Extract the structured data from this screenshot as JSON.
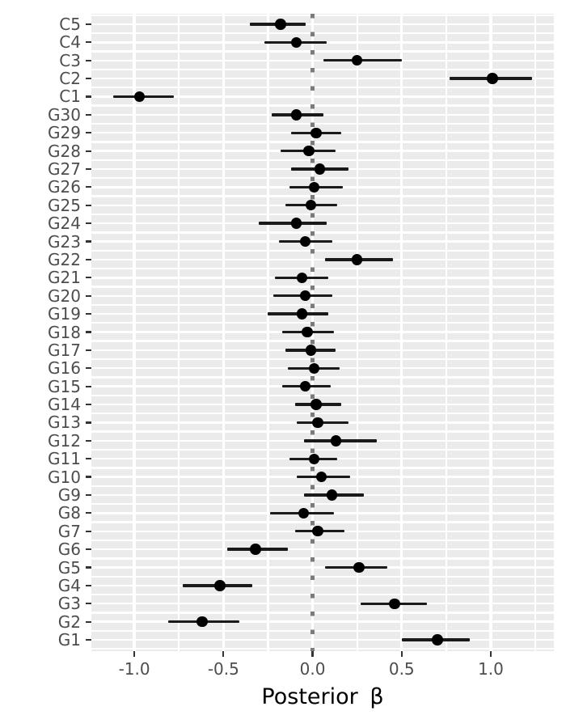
{
  "chart_data": {
    "type": "scatter",
    "subtype": "forest-pointrange",
    "title": "",
    "xlabel": "Posterior β",
    "ylabel": "",
    "xlim": [
      -1.241,
      1.354
    ],
    "grid": "on",
    "legend": "none",
    "reference_line": {
      "x": 0,
      "style": "dotted",
      "color": "#7b7b7b"
    },
    "x_ticks": [
      {
        "value": -1.0,
        "label": "-1.0"
      },
      {
        "value": -0.5,
        "label": "-0.5"
      },
      {
        "value": 0.0,
        "label": "0.0"
      },
      {
        "value": 0.5,
        "label": "0.5"
      },
      {
        "value": 1.0,
        "label": "1.0"
      }
    ],
    "x_minor_gridlines": [
      -0.75,
      -0.25,
      0.25,
      0.75,
      1.25
    ],
    "series_name": "Posterior β point estimates with credible intervals",
    "points": [
      {
        "label": "C5",
        "mean": -0.18,
        "lower": -0.35,
        "upper": -0.04
      },
      {
        "label": "C4",
        "mean": -0.09,
        "lower": -0.27,
        "upper": 0.08
      },
      {
        "label": "C3",
        "mean": 0.25,
        "lower": 0.06,
        "upper": 0.5
      },
      {
        "label": "C2",
        "mean": 1.01,
        "lower": 0.77,
        "upper": 1.23
      },
      {
        "label": "C1",
        "mean": -0.97,
        "lower": -1.12,
        "upper": -0.78
      },
      {
        "label": "G30",
        "mean": -0.09,
        "lower": -0.23,
        "upper": 0.06
      },
      {
        "label": "G29",
        "mean": 0.02,
        "lower": -0.12,
        "upper": 0.16
      },
      {
        "label": "G28",
        "mean": -0.02,
        "lower": -0.18,
        "upper": 0.13
      },
      {
        "label": "G27",
        "mean": 0.04,
        "lower": -0.12,
        "upper": 0.2
      },
      {
        "label": "G26",
        "mean": 0.01,
        "lower": -0.13,
        "upper": 0.17
      },
      {
        "label": "G25",
        "mean": -0.01,
        "lower": -0.15,
        "upper": 0.14
      },
      {
        "label": "G24",
        "mean": -0.09,
        "lower": -0.3,
        "upper": 0.08
      },
      {
        "label": "G23",
        "mean": -0.04,
        "lower": -0.19,
        "upper": 0.11
      },
      {
        "label": "G22",
        "mean": 0.25,
        "lower": 0.07,
        "upper": 0.45
      },
      {
        "label": "G21",
        "mean": -0.06,
        "lower": -0.21,
        "upper": 0.09
      },
      {
        "label": "G20",
        "mean": -0.04,
        "lower": -0.22,
        "upper": 0.11
      },
      {
        "label": "G19",
        "mean": -0.06,
        "lower": -0.25,
        "upper": 0.09
      },
      {
        "label": "G18",
        "mean": -0.03,
        "lower": -0.17,
        "upper": 0.12
      },
      {
        "label": "G17",
        "mean": -0.01,
        "lower": -0.15,
        "upper": 0.13
      },
      {
        "label": "G16",
        "mean": 0.01,
        "lower": -0.14,
        "upper": 0.15
      },
      {
        "label": "G15",
        "mean": -0.04,
        "lower": -0.17,
        "upper": 0.1
      },
      {
        "label": "G14",
        "mean": 0.02,
        "lower": -0.1,
        "upper": 0.16
      },
      {
        "label": "G13",
        "mean": 0.03,
        "lower": -0.09,
        "upper": 0.2
      },
      {
        "label": "G12",
        "mean": 0.13,
        "lower": -0.05,
        "upper": 0.36
      },
      {
        "label": "G11",
        "mean": 0.01,
        "lower": -0.13,
        "upper": 0.14
      },
      {
        "label": "G10",
        "mean": 0.05,
        "lower": -0.09,
        "upper": 0.21
      },
      {
        "label": "G9",
        "mean": 0.11,
        "lower": -0.05,
        "upper": 0.29
      },
      {
        "label": "G8",
        "mean": -0.05,
        "lower": -0.24,
        "upper": 0.12
      },
      {
        "label": "G7",
        "mean": 0.03,
        "lower": -0.1,
        "upper": 0.18
      },
      {
        "label": "G6",
        "mean": -0.32,
        "lower": -0.48,
        "upper": -0.14
      },
      {
        "label": "G5",
        "mean": 0.26,
        "lower": 0.07,
        "upper": 0.42
      },
      {
        "label": "G4",
        "mean": -0.52,
        "lower": -0.73,
        "upper": -0.34
      },
      {
        "label": "G3",
        "mean": 0.46,
        "lower": 0.27,
        "upper": 0.64
      },
      {
        "label": "G2",
        "mean": -0.62,
        "lower": -0.81,
        "upper": -0.41
      },
      {
        "label": "G1",
        "mean": 0.7,
        "lower": 0.5,
        "upper": 0.88
      }
    ]
  },
  "styles": {
    "panel_background": "#ebebeb",
    "grid_color": "#ffffff",
    "point_color": "#000000",
    "interval_color": "#1a1a1a",
    "reference_color": "#7b7b7b",
    "axis_text_color": "#4d4d4d",
    "tick_mark_color": "#333333",
    "title_color": "#000000"
  }
}
